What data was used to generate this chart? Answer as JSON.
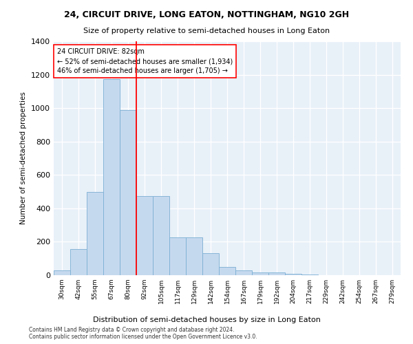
{
  "title": "24, CIRCUIT DRIVE, LONG EATON, NOTTINGHAM, NG10 2GH",
  "subtitle": "Size of property relative to semi-detached houses in Long Eaton",
  "xlabel": "Distribution of semi-detached houses by size in Long Eaton",
  "ylabel": "Number of semi-detached properties",
  "categories": [
    "30sqm",
    "42sqm",
    "55sqm",
    "67sqm",
    "80sqm",
    "92sqm",
    "105sqm",
    "117sqm",
    "129sqm",
    "142sqm",
    "154sqm",
    "167sqm",
    "179sqm",
    "192sqm",
    "204sqm",
    "217sqm",
    "229sqm",
    "242sqm",
    "254sqm",
    "267sqm",
    "279sqm"
  ],
  "values": [
    30,
    155,
    500,
    1175,
    990,
    475,
    475,
    225,
    225,
    130,
    50,
    30,
    18,
    15,
    8,
    4,
    0,
    0,
    0,
    0,
    0
  ],
  "bar_color": "#c5d9ee",
  "bar_edge_color": "#7aafd4",
  "background_color": "#e8f0f8",
  "grid_color": "#ffffff",
  "red_line_bin_index": 4,
  "annotation_line1": "24 CIRCUIT DRIVE: 82sqm",
  "annotation_line2": "← 52% of semi-detached houses are smaller (1,934)",
  "annotation_line3": "46% of semi-detached houses are larger (1,705) →",
  "footer1": "Contains HM Land Registry data © Crown copyright and database right 2024.",
  "footer2": "Contains public sector information licensed under the Open Government Licence v3.0.",
  "ylim": [
    0,
    1400
  ],
  "yticks": [
    0,
    200,
    400,
    600,
    800,
    1000,
    1200,
    1400
  ]
}
